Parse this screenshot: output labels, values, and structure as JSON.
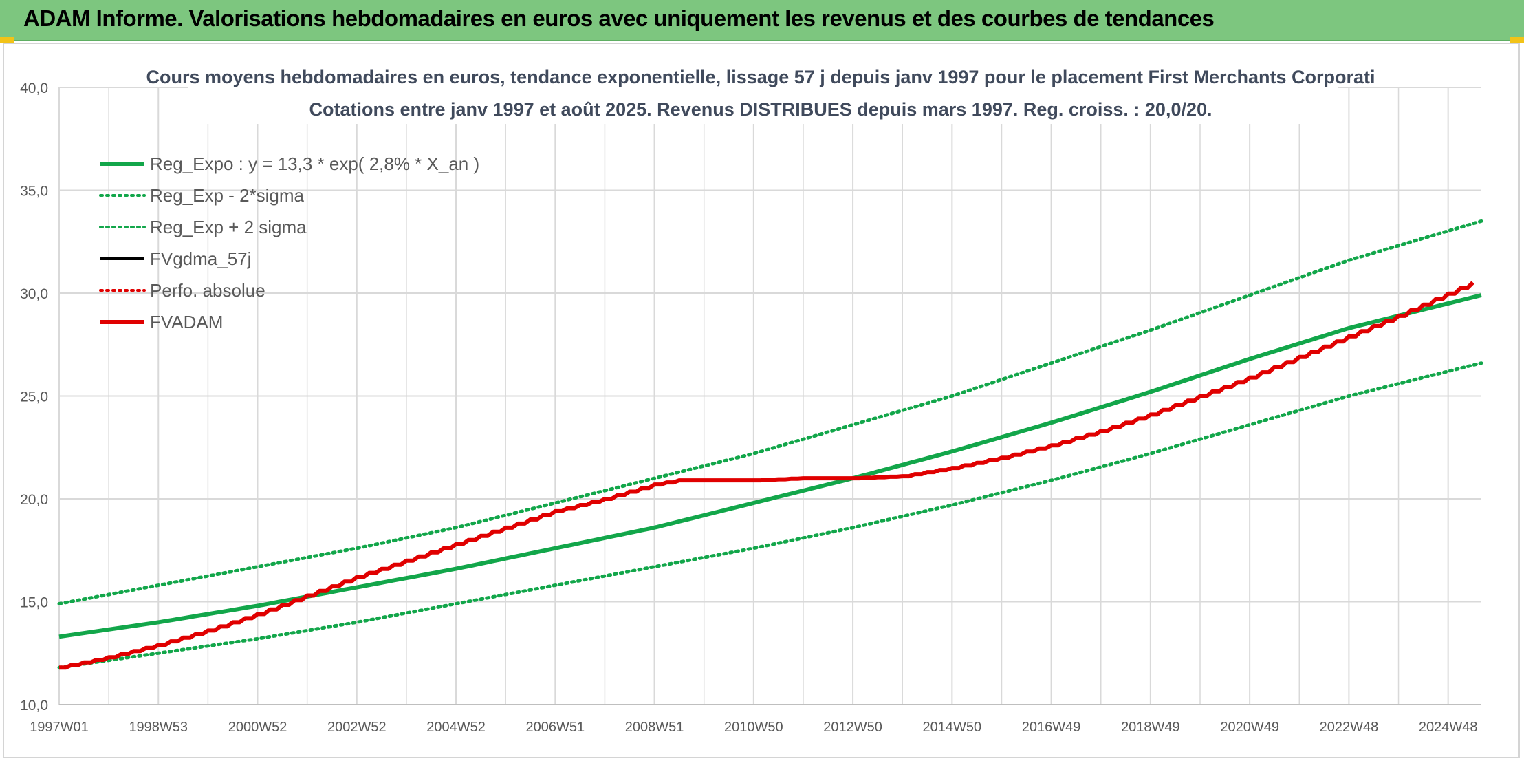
{
  "banner": {
    "title": "ADAM Informe. Valorisations hebdomadaires en euros avec uniquement les revenus et des courbes de tendances"
  },
  "colors": {
    "banner_bg": "#7dc67f",
    "green": "#12a64a",
    "red": "#e00000",
    "black": "#000000",
    "grid": "#d9d9d9",
    "title_text": "#404a5c"
  },
  "chart_data": {
    "type": "line",
    "title": "Cours moyens hebdomadaires en euros, tendance exponentielle, lissage 57 j depuis janv 1997 pour le placement First Merchants Corporati",
    "subtitle": "Cotations entre janv 1997 et août 2025. Revenus DISTRIBUES depuis mars 1997. Reg. croiss. : 20,0/20.",
    "xlabel": "",
    "ylabel": "",
    "ylim": [
      10,
      40
    ],
    "yticks": [
      "10,0",
      "15,0",
      "20,0",
      "25,0",
      "30,0",
      "35,0",
      "40,0"
    ],
    "x_tick_labels": [
      "1997W01",
      "1998W53",
      "2000W52",
      "2002W52",
      "2004W52",
      "2006W51",
      "2008W51",
      "2010W50",
      "2012W50",
      "2014W50",
      "2016W49",
      "2018W49",
      "2020W49",
      "2022W48",
      "2024W48"
    ],
    "x_tick_years": [
      1997.0,
      1999.0,
      2001.0,
      2003.0,
      2005.0,
      2007.0,
      2009.0,
      2011.0,
      2013.0,
      2015.0,
      2017.0,
      2019.0,
      2021.0,
      2023.0,
      2025.0
    ],
    "xlim_years": [
      1997.0,
      2025.67
    ],
    "grid": true,
    "legend_position": "top-left",
    "series": [
      {
        "name": "Reg_Expo : y = 13,3 * exp( 2,8% *  X_an )",
        "style": "solid",
        "color": "#12a64a",
        "width": 6,
        "x": [
          1997,
          1999,
          2001,
          2003,
          2005,
          2007,
          2009,
          2011,
          2013,
          2015,
          2017,
          2019,
          2021,
          2023,
          2025.67
        ],
        "values": [
          13.3,
          14.0,
          14.8,
          15.7,
          16.6,
          17.6,
          18.6,
          19.8,
          21.0,
          22.3,
          23.7,
          25.2,
          26.8,
          28.3,
          29.9
        ]
      },
      {
        "name": "Reg_Exp - 2*sigma",
        "style": "dotted",
        "color": "#12a64a",
        "width": 5,
        "x": [
          1997,
          1999,
          2001,
          2003,
          2005,
          2007,
          2009,
          2011,
          2013,
          2015,
          2017,
          2019,
          2021,
          2023,
          2025.67
        ],
        "values": [
          11.8,
          12.5,
          13.2,
          14.0,
          14.9,
          15.8,
          16.7,
          17.6,
          18.6,
          19.7,
          20.9,
          22.2,
          23.6,
          25.0,
          26.6
        ]
      },
      {
        "name": "Reg_Exp + 2 sigma",
        "style": "dotted",
        "color": "#12a64a",
        "width": 5,
        "x": [
          1997,
          1999,
          2001,
          2003,
          2005,
          2007,
          2009,
          2011,
          2013,
          2015,
          2017,
          2019,
          2021,
          2023,
          2025.67
        ],
        "values": [
          14.9,
          15.8,
          16.7,
          17.6,
          18.6,
          19.8,
          21.0,
          22.2,
          23.6,
          25.0,
          26.6,
          28.2,
          29.9,
          31.6,
          33.5
        ]
      },
      {
        "name": "FVgdma_57j",
        "style": "solid",
        "color": "#000000",
        "width": 4,
        "x": [],
        "values": []
      },
      {
        "name": "Perfo. absolue",
        "style": "dotted",
        "color": "#e00000",
        "width": 4,
        "x": [],
        "values": []
      },
      {
        "name": "FVADAM",
        "style": "solid",
        "color": "#e00000",
        "width": 6,
        "x": [
          1997,
          1998,
          1999,
          2000,
          2001,
          2002,
          2003,
          2004,
          2005,
          2006,
          2007,
          2008,
          2009,
          2009.5,
          2010,
          2011,
          2012,
          2013,
          2014,
          2015,
          2016,
          2017,
          2018,
          2019,
          2020,
          2021,
          2022,
          2023,
          2024,
          2025.67
        ],
        "values": [
          11.8,
          12.3,
          12.9,
          13.6,
          14.4,
          15.3,
          16.2,
          17.0,
          17.8,
          18.6,
          19.4,
          20.0,
          20.7,
          20.9,
          20.9,
          20.9,
          21.0,
          21.0,
          21.1,
          21.5,
          22.0,
          22.6,
          23.3,
          24.1,
          25.0,
          25.9,
          26.9,
          27.9,
          28.9,
          30.7
        ]
      }
    ]
  }
}
